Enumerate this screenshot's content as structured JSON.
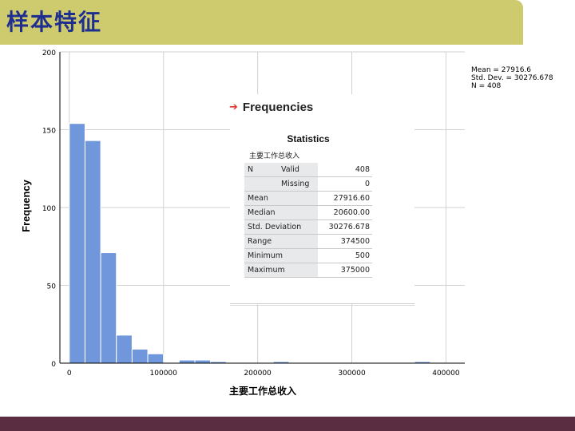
{
  "slide": {
    "title": "样本特征",
    "colors": {
      "title_bar": "#cdcb6e",
      "title_text": "#1e2f8f",
      "bottom_bar": "#5a2d40",
      "bar_fill": "#7097dc"
    }
  },
  "chart_data": {
    "type": "bar",
    "xlabel": "主要工作总收入",
    "ylabel": "Frequency",
    "xlim": [
      -10000,
      420000
    ],
    "ylim": [
      0,
      200
    ],
    "xticks": [
      "0",
      "100000",
      "200000",
      "300000",
      "400000"
    ],
    "yticks": [
      "0",
      "50",
      "100",
      "150",
      "200"
    ],
    "grid": true,
    "bin_width": 16667,
    "bins": [
      {
        "start": 0,
        "value": 154
      },
      {
        "start": 16667,
        "value": 143
      },
      {
        "start": 33333,
        "value": 71
      },
      {
        "start": 50000,
        "value": 18
      },
      {
        "start": 66667,
        "value": 9
      },
      {
        "start": 83333,
        "value": 6
      },
      {
        "start": 116667,
        "value": 2
      },
      {
        "start": 133333,
        "value": 2
      },
      {
        "start": 150000,
        "value": 1
      },
      {
        "start": 216667,
        "value": 1
      },
      {
        "start": 366667,
        "value": 1
      }
    ],
    "annotation": [
      "Mean = 27916.6",
      "Std. Dev. = 30276.678",
      "N = 408"
    ]
  },
  "output": {
    "heading": "Frequencies",
    "table_title": "Statistics",
    "variable": "主要工作总收入",
    "rows": [
      {
        "label": "N",
        "sub": "Valid",
        "value": "408"
      },
      {
        "label": "",
        "sub": "Missing",
        "value": "0"
      },
      {
        "label": "Mean",
        "value": "27916.60"
      },
      {
        "label": "Median",
        "value": "20600.00"
      },
      {
        "label": "Std. Deviation",
        "value": "30276.678"
      },
      {
        "label": "Range",
        "value": "374500"
      },
      {
        "label": "Minimum",
        "value": "500"
      },
      {
        "label": "Maximum",
        "value": "375000"
      }
    ]
  }
}
